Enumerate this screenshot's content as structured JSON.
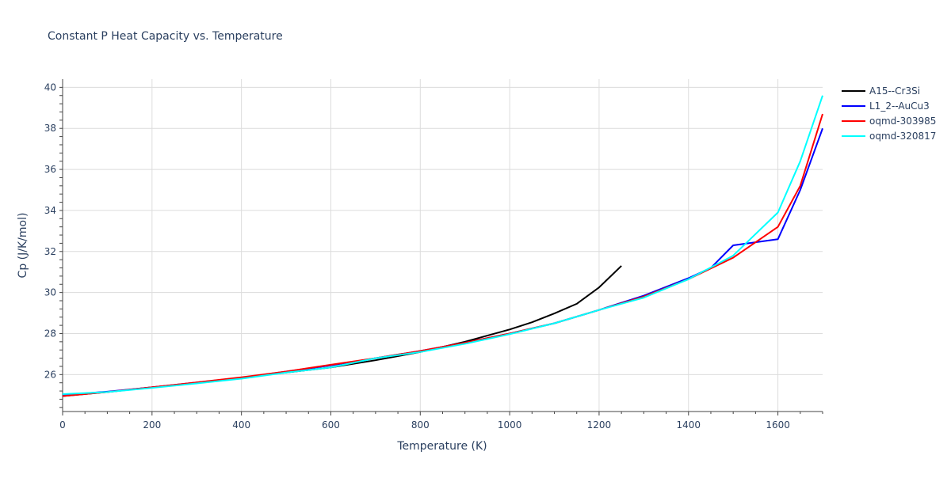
{
  "chart_data": {
    "type": "line",
    "title": "Constant P Heat Capacity vs. Temperature",
    "xlabel": "Temperature (K)",
    "ylabel": "Cp (J/K/mol)",
    "xlim": [
      0,
      1700
    ],
    "ylim": [
      24.2,
      40.4
    ],
    "xticks": [
      0,
      200,
      400,
      600,
      800,
      1000,
      1200,
      1400,
      1600
    ],
    "yticks": [
      26,
      28,
      30,
      32,
      34,
      36,
      38,
      40
    ],
    "grid": true,
    "legend_position": "top-right",
    "series": [
      {
        "name": "A15--Cr3Si",
        "color": "#000000",
        "x": [
          0,
          100,
          200,
          300,
          400,
          500,
          600,
          700,
          800,
          900,
          1000,
          1050,
          1100,
          1150,
          1200,
          1250
        ],
        "y": [
          24.95,
          25.15,
          25.38,
          25.6,
          25.85,
          26.1,
          26.35,
          26.7,
          27.1,
          27.6,
          28.2,
          28.55,
          28.98,
          29.45,
          30.25,
          31.3
        ]
      },
      {
        "name": "L1_2--AuCu3",
        "color": "#0000ff",
        "x": [
          0,
          100,
          200,
          300,
          400,
          500,
          600,
          700,
          800,
          900,
          1000,
          1100,
          1200,
          1300,
          1400,
          1450,
          1500,
          1600,
          1650,
          1700
        ],
        "y": [
          25.0,
          25.17,
          25.38,
          25.62,
          25.85,
          26.15,
          26.45,
          26.8,
          27.15,
          27.55,
          28.0,
          28.5,
          29.15,
          29.85,
          30.7,
          31.2,
          32.3,
          32.6,
          35.0,
          38.0
        ]
      },
      {
        "name": "oqmd-303985",
        "color": "#ff0000",
        "x": [
          0,
          100,
          200,
          300,
          400,
          500,
          600,
          700,
          800,
          900,
          1000,
          1100,
          1200,
          1300,
          1400,
          1500,
          1600,
          1650,
          1700
        ],
        "y": [
          24.95,
          25.15,
          25.38,
          25.62,
          25.87,
          26.15,
          26.48,
          26.8,
          27.15,
          27.55,
          28.0,
          28.5,
          29.15,
          29.8,
          30.65,
          31.7,
          33.2,
          35.2,
          38.7
        ]
      },
      {
        "name": "oqmd-320817",
        "color": "#00ffff",
        "x": [
          0,
          100,
          200,
          300,
          400,
          500,
          600,
          700,
          800,
          900,
          1000,
          1100,
          1200,
          1300,
          1400,
          1500,
          1600,
          1650,
          1700
        ],
        "y": [
          25.05,
          25.15,
          25.35,
          25.57,
          25.8,
          26.1,
          26.35,
          26.8,
          27.1,
          27.5,
          27.97,
          28.5,
          29.15,
          29.75,
          30.65,
          31.8,
          33.9,
          36.4,
          39.6
        ]
      }
    ]
  }
}
